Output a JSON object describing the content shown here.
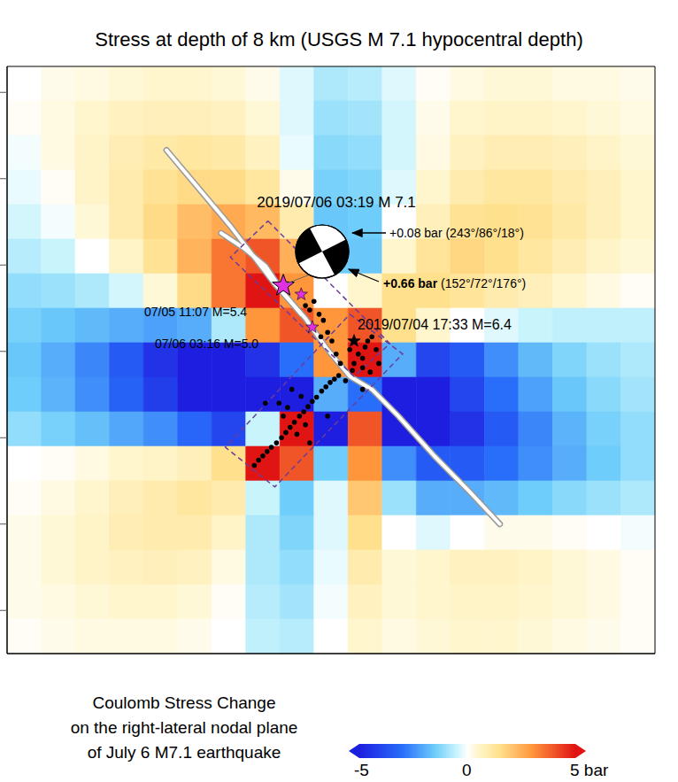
{
  "chart_data": {
    "type": "heatmap",
    "title": "Stress at depth of 8 km (USGS M 7.1 hypocentral depth)",
    "xlim": [
      0,
      76
    ],
    "ylim": [
      0,
      68
    ],
    "yticks": [
      5,
      15,
      25,
      35,
      45,
      55,
      65
    ],
    "tick_labels": false,
    "heatmap": {
      "x_edges": [
        0,
        4,
        8,
        12,
        16,
        20,
        24,
        28,
        32,
        36,
        40,
        44,
        48,
        52,
        56,
        60,
        64,
        68,
        72,
        76
      ],
      "y_edges": [
        68,
        64,
        60,
        56,
        52,
        48,
        44,
        40,
        36,
        32,
        28,
        24,
        20,
        16,
        12,
        8,
        4,
        0
      ],
      "cells": [
        [
          0,
          0.2,
          0.3,
          0.4,
          0.5,
          0.5,
          0.4,
          0.2,
          -0.3,
          -0.8,
          -0.7,
          -0.3,
          0.1,
          0.3,
          0.4,
          0.4,
          0.3,
          0.3,
          0.2
        ],
        [
          0.1,
          0.3,
          0.5,
          0.7,
          0.8,
          0.8,
          0.7,
          0.4,
          -0.3,
          -1,
          -0.9,
          -0.4,
          0.2,
          0.5,
          0.6,
          0.6,
          0.5,
          0.4,
          0.3
        ],
        [
          -0.1,
          0.3,
          0.6,
          0.9,
          1.1,
          1.2,
          1.1,
          0.7,
          -0.2,
          -1.2,
          -1.1,
          -0.4,
          0.3,
          0.7,
          0.9,
          0.9,
          0.8,
          0.6,
          0.4
        ],
        [
          -0.2,
          0.1,
          0.6,
          1,
          1.4,
          1.6,
          1.6,
          1.2,
          0.2,
          -1.4,
          -1.3,
          -0.3,
          0.5,
          1,
          1.2,
          1.2,
          1,
          0.8,
          0.5
        ],
        [
          -0.4,
          -0.1,
          0.4,
          1,
          1.6,
          2.2,
          2.6,
          2.3,
          1,
          -1.6,
          -1.5,
          0,
          0.8,
          1.4,
          1.5,
          1.4,
          1.1,
          0.8,
          0.5
        ],
        [
          -0.7,
          -0.5,
          0,
          0.6,
          1.4,
          2.4,
          3.5,
          4,
          2.5,
          -1.5,
          -1.6,
          0.5,
          1.3,
          1.7,
          1.5,
          1.2,
          0.9,
          0.6,
          0.4
        ],
        [
          -1.1,
          -1,
          -0.8,
          -0.4,
          0.4,
          1.6,
          3.5,
          5,
          3,
          0,
          0.5,
          1.5,
          1.5,
          1.3,
          1,
          0.8,
          0.5,
          0.3,
          0.1
        ],
        [
          -1.4,
          -1.6,
          -1.8,
          -2,
          -2.2,
          -2,
          -0.8,
          3,
          4,
          3,
          4,
          1.5,
          0.5,
          0,
          -0.3,
          -0.5,
          -0.6,
          -0.6,
          -0.6
        ],
        [
          -1.6,
          -2,
          -2.6,
          -3.5,
          -4.5,
          -5,
          -5,
          -4.5,
          -3,
          3,
          5,
          -2,
          -4,
          -3.5,
          -2.5,
          -1.8,
          -1.3,
          -1,
          -0.8
        ],
        [
          -1.5,
          -1.9,
          -2.5,
          -3.3,
          -4.2,
          -5,
          -5,
          -5,
          -5,
          -2,
          -3,
          -5,
          -5,
          -4,
          -3,
          -2.2,
          -1.6,
          -1.2,
          -0.9
        ],
        [
          -1.1,
          -1.4,
          -1.7,
          -2.1,
          -2.5,
          -3.2,
          -4,
          -0.5,
          5,
          -5,
          4,
          -5,
          -5,
          -4.5,
          -3.5,
          -2.6,
          -1.9,
          -1.4,
          -1.1
        ],
        [
          0,
          0.1,
          0.3,
          0.5,
          0.6,
          0.8,
          1.5,
          5,
          4,
          -1.5,
          3,
          -2.5,
          -3.5,
          -3.5,
          -3,
          -2.5,
          -2,
          -1.5,
          -1.1
        ],
        [
          0.1,
          0.3,
          0.5,
          0.8,
          1,
          1.2,
          1,
          -0.5,
          -1.5,
          -0.3,
          2,
          -1,
          -2,
          -2,
          -1.8,
          -1.5,
          -1.2,
          -1,
          -0.8
        ],
        [
          0.2,
          0.4,
          0.6,
          0.9,
          1,
          1,
          0.6,
          -0.8,
          -1.3,
          -0.3,
          1.5,
          0,
          -0.3,
          0,
          0.2,
          0.2,
          0.1,
          0,
          -0.1
        ],
        [
          0.2,
          0.4,
          0.6,
          0.7,
          0.8,
          0.7,
          0.3,
          -0.8,
          -1.1,
          -0.2,
          1,
          0.4,
          0.5,
          0.7,
          0.7,
          0.6,
          0.4,
          0.3,
          0.1
        ],
        [
          0.2,
          0.3,
          0.4,
          0.5,
          0.5,
          0.4,
          0.1,
          -0.7,
          -0.9,
          -0.1,
          0.7,
          0.4,
          0.5,
          0.6,
          0.6,
          0.5,
          0.4,
          0.3,
          0.1
        ],
        [
          0.1,
          0.2,
          0.3,
          0.3,
          0.3,
          0.2,
          0,
          -0.6,
          -0.7,
          0,
          0.5,
          0.3,
          0.4,
          0.5,
          0.5,
          0.4,
          0.3,
          0.2,
          0.1
        ]
      ]
    },
    "colorbar": {
      "label": "Coulomb Stress Change\non the right-lateral nodal plane\nof July 6 M7.1 earthquake",
      "range": [
        -5,
        5
      ],
      "ticks": [
        -5,
        0,
        {
          "value": 5,
          "label": "5 bar"
        }
      ]
    },
    "faults": [
      {
        "color": "#9a9a9a",
        "points": [
          [
            18.7,
            58.3
          ],
          [
            26.2,
            49.5
          ],
          [
            31.4,
            42.8
          ],
          [
            35.0,
            38.8
          ],
          [
            37.6,
            35.2
          ],
          [
            40.2,
            32.1
          ],
          [
            42.8,
            30.6
          ],
          [
            45.9,
            27.5
          ],
          [
            50.1,
            22.9
          ],
          [
            54.2,
            18.8
          ],
          [
            57.8,
            15.0
          ]
        ]
      },
      {
        "color": "#9a9a9a",
        "points": [
          [
            25.1,
            48.7
          ],
          [
            27.7,
            47.0
          ],
          [
            30.3,
            44.9
          ],
          [
            32.4,
            41.8
          ],
          [
            34.5,
            39.3
          ]
        ]
      }
    ],
    "model_outlines": [
      {
        "color": "#6a3d9a",
        "line_style": "dashed",
        "points": [
          [
            30.6,
            50.1
          ],
          [
            44.9,
            35.9
          ],
          [
            40.7,
            32.1
          ],
          [
            26.2,
            45.9
          ]
        ]
      },
      {
        "color": "#6a3d9a",
        "line_style": "dashed",
        "points": [
          [
            40.2,
            39.3
          ],
          [
            46.4,
            34.7
          ],
          [
            31.4,
            19.3
          ],
          [
            25.6,
            23.9
          ]
        ]
      }
    ],
    "aftershocks": {
      "color": "#000000",
      "marker": "circle",
      "points": [
        [
          29.0,
          21.8
        ],
        [
          29.5,
          22.4
        ],
        [
          30.0,
          22.9
        ],
        [
          30.5,
          23.4
        ],
        [
          31.0,
          23.9
        ],
        [
          31.6,
          24.4
        ],
        [
          32.2,
          25.0
        ],
        [
          32.7,
          25.6
        ],
        [
          33.2,
          26.2
        ],
        [
          33.7,
          26.8
        ],
        [
          34.3,
          27.5
        ],
        [
          34.8,
          28.0
        ],
        [
          35.3,
          28.6
        ],
        [
          35.8,
          29.2
        ],
        [
          36.3,
          29.7
        ],
        [
          36.9,
          30.4
        ],
        [
          37.4,
          30.9
        ],
        [
          37.9,
          31.4
        ],
        [
          38.4,
          31.8
        ],
        [
          38.9,
          32.2
        ],
        [
          32.4,
          27.5
        ],
        [
          31.9,
          29.0
        ],
        [
          32.9,
          28.5
        ],
        [
          34.0,
          25.4
        ],
        [
          35.0,
          26.5
        ],
        [
          33.4,
          30.6
        ],
        [
          34.5,
          29.8
        ],
        [
          40.2,
          35.2
        ],
        [
          41.2,
          34.7
        ],
        [
          41.7,
          34.2
        ],
        [
          42.3,
          36.2
        ],
        [
          42.8,
          36.7
        ],
        [
          43.3,
          35.2
        ],
        [
          41.7,
          33.1
        ],
        [
          40.7,
          33.6
        ],
        [
          42.6,
          32.6
        ],
        [
          43.6,
          33.6
        ],
        [
          40.5,
          32.8
        ],
        [
          42.0,
          35.5
        ],
        [
          35.0,
          40.3
        ],
        [
          35.5,
          39.8
        ],
        [
          36.6,
          39.3
        ],
        [
          37.1,
          38.6
        ],
        [
          36.0,
          40.8
        ],
        [
          37.6,
          37.2
        ],
        [
          38.1,
          36.2
        ],
        [
          38.6,
          34.7
        ],
        [
          36.8,
          36.7
        ],
        [
          39.1,
          33.6
        ],
        [
          39.7,
          31.6
        ],
        [
          30.3,
          29.0
        ],
        [
          37.6,
          27.5
        ],
        [
          35.5,
          24.4
        ],
        [
          41.7,
          30.6
        ]
      ]
    },
    "events": [
      {
        "label": "2019/07/06 03:19 M 7.1",
        "x": 32.4,
        "y": 42.6,
        "color": "#e030e0",
        "marker": "star_large"
      },
      {
        "label": "07/05 11:07 M=5.4",
        "x": 34.5,
        "y": 41.6,
        "color": "#e030e0",
        "marker": "star"
      },
      {
        "label": "07/06 03:16 M=5.0",
        "x": 35.8,
        "y": 37.8,
        "color": "#e030e0",
        "marker": "star"
      },
      {
        "label": "2019/07/04 17:33 M=6.4",
        "x": 40.7,
        "y": 36.2,
        "color": "#000000",
        "marker": "star"
      }
    ],
    "focal_mechanism": {
      "nodal_planes": [
        {
          "text": "+0.08 bar (243°/86°/18°)"
        },
        {
          "bold": "+0.66 bar",
          "text": "(152°/72°/176°)"
        }
      ]
    }
  }
}
